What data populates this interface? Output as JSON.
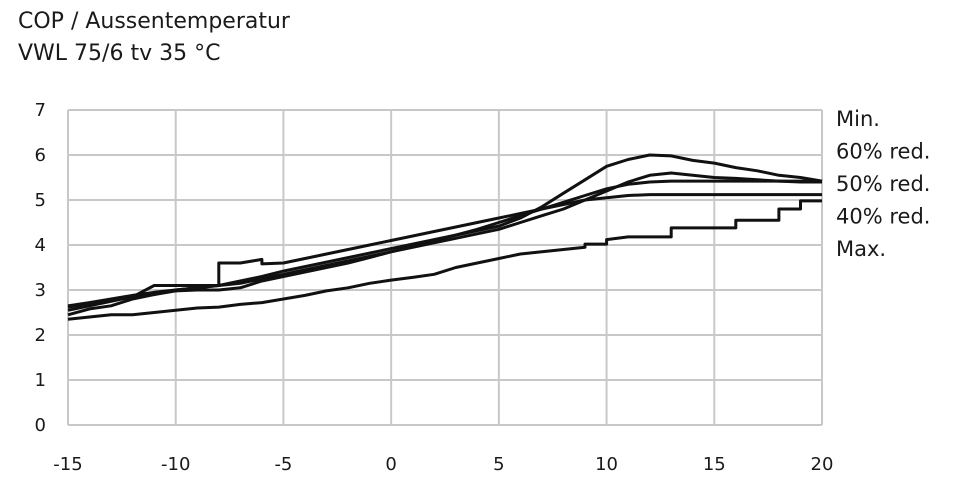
{
  "chart_data": {
    "type": "line",
    "title": "COP / Aussentemperatur",
    "subtitle": "VWL 75/6 tv 35 °C",
    "xlabel": "",
    "ylabel": "",
    "xlim": [
      -15,
      20
    ],
    "ylim": [
      0,
      7
    ],
    "x_ticks": [
      "-15",
      "-10",
      "-5",
      "0",
      "5",
      "10",
      "15",
      "20"
    ],
    "y_ticks": [
      "0",
      "1",
      "2",
      "3",
      "4",
      "5",
      "6",
      "7"
    ],
    "grid": true,
    "legend_position": "right",
    "legend": [
      "Min.",
      "60% red.",
      "50% red.",
      "40% red.",
      "Max."
    ],
    "series": [
      {
        "name": "Min.",
        "points": [
          [
            -15,
            2.65
          ],
          [
            -14,
            2.72
          ],
          [
            -13,
            2.8
          ],
          [
            -12,
            2.88
          ],
          [
            -11,
            2.95
          ],
          [
            -10,
            3.0
          ],
          [
            -9,
            3.05
          ],
          [
            -8,
            3.1
          ],
          [
            -7,
            3.15
          ],
          [
            -6,
            3.25
          ],
          [
            -5,
            3.35
          ],
          [
            -4,
            3.45
          ],
          [
            -3,
            3.55
          ],
          [
            -2,
            3.65
          ],
          [
            -1,
            3.75
          ],
          [
            0,
            3.85
          ],
          [
            1,
            3.95
          ],
          [
            2,
            4.05
          ],
          [
            3,
            4.15
          ],
          [
            4,
            4.25
          ],
          [
            5,
            4.35
          ],
          [
            6,
            4.5
          ],
          [
            7,
            4.65
          ],
          [
            8,
            4.8
          ],
          [
            9,
            5.0
          ],
          [
            10,
            5.2
          ],
          [
            11,
            5.4
          ],
          [
            12,
            5.55
          ],
          [
            13,
            5.6
          ],
          [
            14,
            5.55
          ],
          [
            15,
            5.5
          ],
          [
            16,
            5.48
          ],
          [
            17,
            5.45
          ],
          [
            18,
            5.42
          ],
          [
            19,
            5.4
          ],
          [
            20,
            5.4
          ]
        ]
      },
      {
        "name": "60% red.",
        "points": [
          [
            -15,
            2.55
          ],
          [
            -14,
            2.65
          ],
          [
            -13,
            2.75
          ],
          [
            -12,
            2.85
          ],
          [
            -11,
            2.9
          ],
          [
            -10,
            2.98
          ],
          [
            -9,
            3.0
          ],
          [
            -8,
            3.0
          ],
          [
            -7,
            3.05
          ],
          [
            -6,
            3.2
          ],
          [
            -5,
            3.3
          ],
          [
            -4,
            3.4
          ],
          [
            -3,
            3.5
          ],
          [
            -2,
            3.6
          ],
          [
            -1,
            3.72
          ],
          [
            0,
            3.85
          ],
          [
            1,
            3.97
          ],
          [
            2,
            4.1
          ],
          [
            3,
            4.22
          ],
          [
            4,
            4.35
          ],
          [
            5,
            4.5
          ],
          [
            6,
            4.65
          ],
          [
            7,
            4.8
          ],
          [
            8,
            4.95
          ],
          [
            9,
            5.1
          ],
          [
            10,
            5.25
          ],
          [
            11,
            5.35
          ],
          [
            12,
            5.4
          ],
          [
            13,
            5.42
          ],
          [
            14,
            5.42
          ],
          [
            15,
            5.42
          ],
          [
            16,
            5.42
          ],
          [
            17,
            5.42
          ],
          [
            18,
            5.42
          ],
          [
            19,
            5.42
          ],
          [
            20,
            5.42
          ]
        ]
      },
      {
        "name": "50% red.",
        "points": [
          [
            -15,
            2.45
          ],
          [
            -14,
            2.58
          ],
          [
            -13,
            2.65
          ],
          [
            -12,
            2.8
          ],
          [
            -11,
            2.9
          ],
          [
            -10,
            3.0
          ],
          [
            -9,
            3.05
          ],
          [
            -8,
            3.1
          ],
          [
            -7,
            3.2
          ],
          [
            -6,
            3.3
          ],
          [
            -5,
            3.42
          ],
          [
            -4,
            3.52
          ],
          [
            -3,
            3.62
          ],
          [
            -2,
            3.72
          ],
          [
            -1,
            3.82
          ],
          [
            0,
            3.92
          ],
          [
            1,
            4.02
          ],
          [
            2,
            4.12
          ],
          [
            3,
            4.22
          ],
          [
            4,
            4.32
          ],
          [
            5,
            4.42
          ],
          [
            6,
            4.6
          ],
          [
            7,
            4.85
          ],
          [
            8,
            5.15
          ],
          [
            9,
            5.45
          ],
          [
            10,
            5.75
          ],
          [
            11,
            5.9
          ],
          [
            12,
            6.0
          ],
          [
            13,
            5.98
          ],
          [
            14,
            5.88
          ],
          [
            15,
            5.82
          ],
          [
            16,
            5.72
          ],
          [
            17,
            5.65
          ],
          [
            18,
            5.55
          ],
          [
            19,
            5.5
          ],
          [
            20,
            5.42
          ]
        ]
      },
      {
        "name": "40% red.",
        "points": [
          [
            -15,
            2.62
          ],
          [
            -14,
            2.7
          ],
          [
            -13,
            2.77
          ],
          [
            -12,
            2.85
          ],
          [
            -11,
            3.1
          ],
          [
            -9,
            3.1
          ],
          [
            -8,
            3.1
          ],
          [
            -8,
            3.6
          ],
          [
            -7,
            3.6
          ],
          [
            -6,
            3.68
          ],
          [
            -6,
            3.58
          ],
          [
            -5,
            3.6
          ],
          [
            -4,
            3.7
          ],
          [
            -3,
            3.8
          ],
          [
            -2,
            3.9
          ],
          [
            -1,
            4.0
          ],
          [
            0,
            4.1
          ],
          [
            1,
            4.2
          ],
          [
            2,
            4.3
          ],
          [
            3,
            4.4
          ],
          [
            4,
            4.5
          ],
          [
            5,
            4.6
          ],
          [
            6,
            4.7
          ],
          [
            7,
            4.8
          ],
          [
            8,
            4.9
          ],
          [
            9,
            5.0
          ],
          [
            10,
            5.05
          ],
          [
            11,
            5.1
          ],
          [
            12,
            5.12
          ],
          [
            13,
            5.12
          ],
          [
            14,
            5.12
          ],
          [
            15,
            5.12
          ],
          [
            16,
            5.12
          ],
          [
            17,
            5.12
          ],
          [
            18,
            5.12
          ],
          [
            19,
            5.12
          ],
          [
            20,
            5.12
          ]
        ]
      },
      {
        "name": "Max.",
        "points": [
          [
            -15,
            2.35
          ],
          [
            -14,
            2.4
          ],
          [
            -13,
            2.45
          ],
          [
            -12,
            2.45
          ],
          [
            -11,
            2.5
          ],
          [
            -10,
            2.55
          ],
          [
            -9,
            2.6
          ],
          [
            -8,
            2.62
          ],
          [
            -7,
            2.68
          ],
          [
            -6,
            2.72
          ],
          [
            -5,
            2.8
          ],
          [
            -4,
            2.88
          ],
          [
            -3,
            2.98
          ],
          [
            -2,
            3.05
          ],
          [
            -1,
            3.15
          ],
          [
            0,
            3.22
          ],
          [
            1,
            3.28
          ],
          [
            2,
            3.35
          ],
          [
            3,
            3.5
          ],
          [
            4,
            3.6
          ],
          [
            5,
            3.7
          ],
          [
            6,
            3.8
          ],
          [
            7,
            3.85
          ],
          [
            8,
            3.9
          ],
          [
            9,
            3.95
          ],
          [
            9,
            4.02
          ],
          [
            10,
            4.02
          ],
          [
            10,
            4.12
          ],
          [
            11,
            4.18
          ],
          [
            12,
            4.18
          ],
          [
            13,
            4.18
          ],
          [
            13,
            4.38
          ],
          [
            14,
            4.38
          ],
          [
            15,
            4.38
          ],
          [
            16,
            4.38
          ],
          [
            16,
            4.55
          ],
          [
            17,
            4.55
          ],
          [
            18,
            4.55
          ],
          [
            18,
            4.8
          ],
          [
            19,
            4.8
          ],
          [
            19,
            4.98
          ],
          [
            20,
            4.98
          ]
        ]
      }
    ]
  }
}
